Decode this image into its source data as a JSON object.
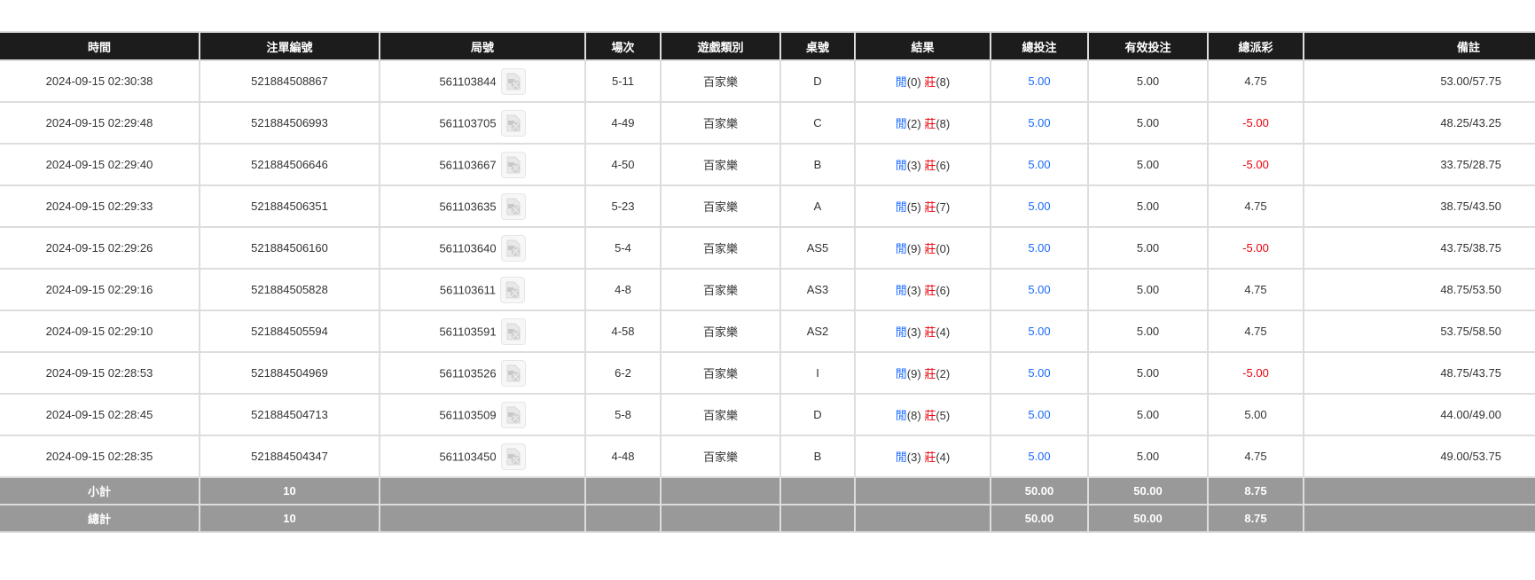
{
  "headers": [
    "時間",
    "注單編號",
    "局號",
    "場次",
    "遊戲類別",
    "桌號",
    "結果",
    "總投注",
    "有效投注",
    "總派彩",
    "備註"
  ],
  "colors": {
    "header_bg": "#1c1c1c",
    "player": "#1a6aff",
    "banker": "#e8000b",
    "negative": "#e8000b",
    "total_bet": "#1a6aff",
    "summary_bg": "#999999"
  },
  "rows": [
    {
      "time": "2024-09-15 02:30:38",
      "bet_id": "521884508867",
      "round": "561103844",
      "session": "5-11",
      "game": "百家樂",
      "table": "D",
      "player_label": "閒",
      "player_score": "(0)",
      "banker_label": "莊",
      "banker_score": "(8)",
      "total_bet": "5.00",
      "valid_bet": "5.00",
      "payout": "4.75",
      "payout_negative": false,
      "remark": "53.00/57.75"
    },
    {
      "time": "2024-09-15 02:29:48",
      "bet_id": "521884506993",
      "round": "561103705",
      "session": "4-49",
      "game": "百家樂",
      "table": "C",
      "player_label": "閒",
      "player_score": "(2)",
      "banker_label": "莊",
      "banker_score": "(8)",
      "total_bet": "5.00",
      "valid_bet": "5.00",
      "payout": "-5.00",
      "payout_negative": true,
      "remark": "48.25/43.25"
    },
    {
      "time": "2024-09-15 02:29:40",
      "bet_id": "521884506646",
      "round": "561103667",
      "session": "4-50",
      "game": "百家樂",
      "table": "B",
      "player_label": "閒",
      "player_score": "(3)",
      "banker_label": "莊",
      "banker_score": "(6)",
      "total_bet": "5.00",
      "valid_bet": "5.00",
      "payout": "-5.00",
      "payout_negative": true,
      "remark": "33.75/28.75"
    },
    {
      "time": "2024-09-15 02:29:33",
      "bet_id": "521884506351",
      "round": "561103635",
      "session": "5-23",
      "game": "百家樂",
      "table": "A",
      "player_label": "閒",
      "player_score": "(5)",
      "banker_label": "莊",
      "banker_score": "(7)",
      "total_bet": "5.00",
      "valid_bet": "5.00",
      "payout": "4.75",
      "payout_negative": false,
      "remark": "38.75/43.50"
    },
    {
      "time": "2024-09-15 02:29:26",
      "bet_id": "521884506160",
      "round": "561103640",
      "session": "5-4",
      "game": "百家樂",
      "table": "AS5",
      "player_label": "閒",
      "player_score": "(9)",
      "banker_label": "莊",
      "banker_score": "(0)",
      "total_bet": "5.00",
      "valid_bet": "5.00",
      "payout": "-5.00",
      "payout_negative": true,
      "remark": "43.75/38.75"
    },
    {
      "time": "2024-09-15 02:29:16",
      "bet_id": "521884505828",
      "round": "561103611",
      "session": "4-8",
      "game": "百家樂",
      "table": "AS3",
      "player_label": "閒",
      "player_score": "(3)",
      "banker_label": "莊",
      "banker_score": "(6)",
      "total_bet": "5.00",
      "valid_bet": "5.00",
      "payout": "4.75",
      "payout_negative": false,
      "remark": "48.75/53.50"
    },
    {
      "time": "2024-09-15 02:29:10",
      "bet_id": "521884505594",
      "round": "561103591",
      "session": "4-58",
      "game": "百家樂",
      "table": "AS2",
      "player_label": "閒",
      "player_score": "(3)",
      "banker_label": "莊",
      "banker_score": "(4)",
      "total_bet": "5.00",
      "valid_bet": "5.00",
      "payout": "4.75",
      "payout_negative": false,
      "remark": "53.75/58.50"
    },
    {
      "time": "2024-09-15 02:28:53",
      "bet_id": "521884504969",
      "round": "561103526",
      "session": "6-2",
      "game": "百家樂",
      "table": "I",
      "player_label": "閒",
      "player_score": "(9)",
      "banker_label": "莊",
      "banker_score": "(2)",
      "total_bet": "5.00",
      "valid_bet": "5.00",
      "payout": "-5.00",
      "payout_negative": true,
      "remark": "48.75/43.75"
    },
    {
      "time": "2024-09-15 02:28:45",
      "bet_id": "521884504713",
      "round": "561103509",
      "session": "5-8",
      "game": "百家樂",
      "table": "D",
      "player_label": "閒",
      "player_score": "(8)",
      "banker_label": "莊",
      "banker_score": "(5)",
      "total_bet": "5.00",
      "valid_bet": "5.00",
      "payout": "5.00",
      "payout_negative": false,
      "remark": "44.00/49.00"
    },
    {
      "time": "2024-09-15 02:28:35",
      "bet_id": "521884504347",
      "round": "561103450",
      "session": "4-48",
      "game": "百家樂",
      "table": "B",
      "player_label": "閒",
      "player_score": "(3)",
      "banker_label": "莊",
      "banker_score": "(4)",
      "total_bet": "5.00",
      "valid_bet": "5.00",
      "payout": "4.75",
      "payout_negative": false,
      "remark": "49.00/53.75"
    }
  ],
  "summary": [
    {
      "label": "小計",
      "count": "10",
      "total_bet": "50.00",
      "valid_bet": "50.00",
      "payout": "8.75"
    },
    {
      "label": "總計",
      "count": "10",
      "total_bet": "50.00",
      "valid_bet": "50.00",
      "payout": "8.75"
    }
  ]
}
